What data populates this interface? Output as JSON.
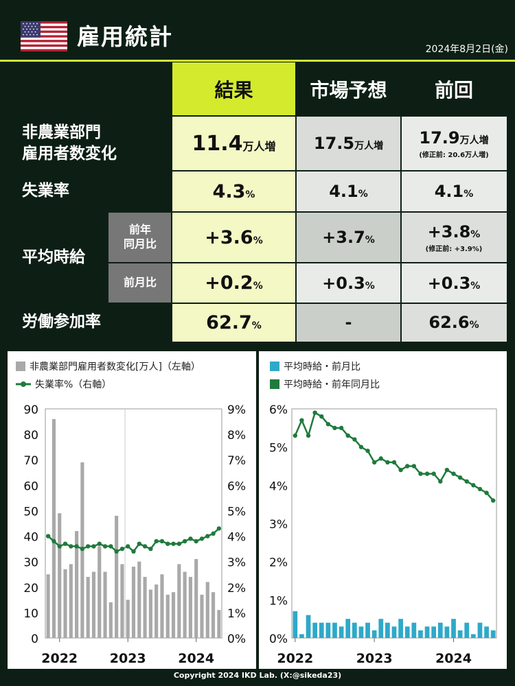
{
  "header": {
    "title": "雇用統計",
    "date": "2024年8月2日(金)",
    "accent": "#cfe63a"
  },
  "table": {
    "columns": [
      "結果",
      "市場予想",
      "前回"
    ],
    "rows": {
      "nfp": {
        "label_line1": "非農業部門",
        "label_line2": "雇用者数変化",
        "result": "11.4",
        "result_unit": "万人増",
        "forecast": "17.5",
        "forecast_unit": "万人増",
        "previous": "17.9",
        "previous_unit": "万人増",
        "previous_note": "(修正前: 20.6万人増)"
      },
      "unemployment": {
        "label": "失業率",
        "result": "4.3",
        "forecast": "4.1",
        "previous": "4.1",
        "unit": "%"
      },
      "wages": {
        "label": "平均時給",
        "yoy_label_line1": "前年",
        "yoy_label_line2": "同月比",
        "yoy_result": "+3.6",
        "yoy_forecast": "+3.7",
        "yoy_previous": "+3.8",
        "yoy_previous_note": "(修正前: +3.9%)",
        "mom_label": "前月比",
        "mom_result": "+0.2",
        "mom_forecast": "+0.3",
        "mom_previous": "+0.3"
      },
      "participation": {
        "label": "労働参加率",
        "result": "62.7",
        "forecast": "-",
        "previous": "62.6",
        "unit": "%"
      }
    }
  },
  "chart_data": [
    {
      "type": "bar",
      "legend": [
        "非農業部門雇用者数変化[万人]（左軸）",
        "失業率%（右軸）"
      ],
      "ylim": [
        0,
        90
      ],
      "y_ticks": [
        0,
        10,
        20,
        30,
        40,
        50,
        60,
        70,
        80,
        90
      ],
      "y2lim": [
        0,
        9
      ],
      "y2_ticks": [
        "0%",
        "1%",
        "2%",
        "3%",
        "4%",
        "5%",
        "6%",
        "7%",
        "8%",
        "9%"
      ],
      "x_labels": [
        "2022",
        "2023",
        "2024"
      ],
      "series": [
        {
          "name": "非農業部門雇用者数変化[万人]（左軸）",
          "values": [
            25,
            86,
            49,
            27,
            29,
            42,
            69,
            24,
            26,
            36,
            26,
            14,
            48,
            29,
            15,
            28,
            30,
            24,
            19,
            21,
            25,
            17,
            18,
            29,
            26,
            24,
            31,
            17,
            22,
            18,
            11
          ]
        },
        {
          "name": "失業率%（右軸）",
          "values": [
            4.0,
            3.8,
            3.6,
            3.7,
            3.6,
            3.6,
            3.5,
            3.6,
            3.6,
            3.7,
            3.6,
            3.6,
            3.4,
            3.5,
            3.6,
            3.4,
            3.7,
            3.6,
            3.5,
            3.8,
            3.8,
            3.7,
            3.7,
            3.7,
            3.8,
            3.9,
            3.8,
            3.9,
            4.0,
            4.1,
            4.3
          ]
        }
      ],
      "colors": {
        "bars": "#a9a9a9",
        "line": "#1f7a3c"
      }
    },
    {
      "type": "bar",
      "legend": [
        "平均時給・前月比",
        "平均時給・前年同月比"
      ],
      "ylim": [
        0,
        6
      ],
      "y_ticks": [
        "0%",
        "1%",
        "2%",
        "3%",
        "4%",
        "5%",
        "6%"
      ],
      "x_labels": [
        "2022",
        "2023",
        "2024"
      ],
      "series": [
        {
          "name": "平均時給・前月比",
          "values": [
            0.7,
            0.1,
            0.6,
            0.4,
            0.4,
            0.4,
            0.4,
            0.3,
            0.5,
            0.4,
            0.3,
            0.4,
            0.2,
            0.5,
            0.4,
            0.3,
            0.5,
            0.3,
            0.4,
            0.2,
            0.3,
            0.3,
            0.4,
            0.3,
            0.5,
            0.2,
            0.4,
            0.1,
            0.4,
            0.3,
            0.2
          ]
        },
        {
          "name": "平均時給・前年同月比",
          "values": [
            5.3,
            5.7,
            5.3,
            5.9,
            5.8,
            5.6,
            5.5,
            5.5,
            5.3,
            5.2,
            5.0,
            4.9,
            4.6,
            4.7,
            4.6,
            4.6,
            4.4,
            4.5,
            4.5,
            4.3,
            4.3,
            4.3,
            4.1,
            4.4,
            4.3,
            4.2,
            4.1,
            4.0,
            3.9,
            3.8,
            3.6
          ]
        }
      ],
      "colors": {
        "bars": "#2ea9c9",
        "line": "#1f7a3c"
      }
    }
  ],
  "footer": {
    "copyright": "Copyright 2024 IKD Lab. (X:@sikeda23)"
  }
}
